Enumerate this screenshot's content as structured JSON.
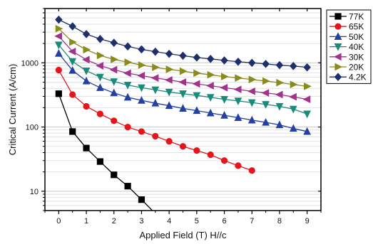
{
  "chart_data": {
    "type": "line",
    "xlabel": "Applied Field (T) H//c",
    "ylabel": "Critical Current (A/cm)",
    "xlim": [
      -0.5,
      9.5
    ],
    "ylim": [
      5,
      7000
    ],
    "yscale": "log",
    "x_ticks": [
      0,
      1,
      2,
      3,
      4,
      5,
      6,
      7,
      8,
      9
    ],
    "y_ticks": [
      10,
      100,
      1000
    ],
    "y_tick_labels": [
      "10",
      "100",
      "1000"
    ],
    "grid": true,
    "legend_position": "right-outside",
    "series": [
      {
        "name": "77K",
        "color": "#000000",
        "marker": "square",
        "x": [
          0,
          0.5,
          1,
          1.5,
          2,
          2.5,
          3,
          3.5
        ],
        "y": [
          330,
          85,
          47,
          29,
          18,
          12,
          7.4,
          4.5
        ]
      },
      {
        "name": "65K",
        "color": "#e8141c",
        "marker": "circle",
        "x": [
          0,
          0.5,
          1,
          1.5,
          2,
          2.5,
          3,
          3.5,
          4,
          4.5,
          5,
          5.5,
          6,
          6.5,
          7
        ],
        "y": [
          770,
          320,
          210,
          160,
          125,
          100,
          85,
          72,
          60,
          50,
          43,
          37,
          30,
          25,
          21
        ]
      },
      {
        "name": "50K",
        "color": "#2440a0",
        "marker": "triangle-up",
        "x": [
          0,
          0.5,
          1,
          1.5,
          2,
          2.5,
          3,
          3.5,
          4,
          4.5,
          5,
          5.5,
          6,
          6.5,
          7,
          7.5,
          8,
          8.5,
          9
        ],
        "y": [
          1400,
          760,
          520,
          410,
          340,
          290,
          260,
          235,
          215,
          195,
          180,
          165,
          152,
          140,
          128,
          118,
          108,
          95,
          85
        ]
      },
      {
        "name": "40K",
        "color": "#1a8a7a",
        "marker": "triangle-down",
        "x": [
          0,
          0.5,
          1,
          1.5,
          2,
          2.5,
          3,
          3.5,
          4,
          4.5,
          5,
          5.5,
          6,
          6.5,
          7,
          7.5,
          8,
          8.5,
          9
        ],
        "y": [
          1900,
          1050,
          750,
          600,
          510,
          450,
          410,
          380,
          350,
          330,
          310,
          290,
          270,
          255,
          240,
          225,
          210,
          190,
          160
        ]
      },
      {
        "name": "30K",
        "color": "#a0338a",
        "marker": "triangle-left",
        "x": [
          0,
          0.5,
          1,
          1.5,
          2,
          2.5,
          3,
          3.5,
          4,
          4.5,
          5,
          5.5,
          6,
          6.5,
          7,
          7.5,
          8,
          8.5,
          9
        ],
        "y": [
          2600,
          1500,
          1120,
          900,
          780,
          690,
          630,
          580,
          540,
          500,
          470,
          440,
          410,
          385,
          360,
          340,
          320,
          295,
          270
        ]
      },
      {
        "name": "20K",
        "color": "#8a8a1e",
        "marker": "triangle-right",
        "x": [
          0,
          0.5,
          1,
          1.5,
          2,
          2.5,
          3,
          3.5,
          4,
          4.5,
          5,
          5.5,
          6,
          6.5,
          7,
          7.5,
          8,
          8.5,
          9
        ],
        "y": [
          3400,
          2100,
          1600,
          1300,
          1130,
          1020,
          920,
          850,
          790,
          740,
          690,
          650,
          610,
          580,
          550,
          520,
          490,
          460,
          430
        ]
      },
      {
        "name": "4.2K",
        "color": "#1e2f6a",
        "marker": "diamond",
        "x": [
          0,
          0.5,
          1,
          1.5,
          2,
          2.5,
          3,
          3.5,
          4,
          4.5,
          5,
          5.5,
          6,
          6.5,
          7,
          7.5,
          8,
          8.5,
          9
        ],
        "y": [
          4700,
          3700,
          2800,
          2350,
          2050,
          1800,
          1620,
          1490,
          1380,
          1290,
          1210,
          1150,
          1090,
          1040,
          1000,
          960,
          920,
          890,
          850
        ]
      }
    ]
  }
}
